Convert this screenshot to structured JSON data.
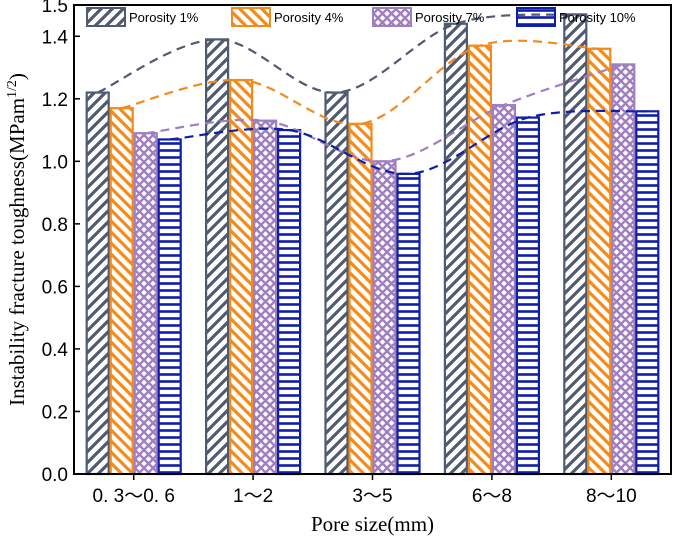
{
  "chart_data": {
    "type": "bar",
    "title": "",
    "xlabel": "Pore size(mm)",
    "ylabel": "Instability fracture toughness(MPam",
    "ylabel_superscript": "1/2",
    "ylabel_suffix": ")",
    "categories": [
      "0. 3～0. 6",
      "1～2",
      "3～5",
      "6～8",
      "8～10"
    ],
    "ylim": [
      0.0,
      1.5
    ],
    "yticks": [
      "0.0",
      "0.2",
      "0.4",
      "0.6",
      "0.8",
      "1.0",
      "1.2",
      "1.4",
      "1.5"
    ],
    "legend_position": "top",
    "series": [
      {
        "name": "Porosity 1%",
        "values": [
          1.22,
          1.39,
          1.22,
          1.44,
          1.47
        ],
        "color": "#505a70",
        "pattern": "diagonal-right"
      },
      {
        "name": "Porosity 4%",
        "values": [
          1.17,
          1.26,
          1.12,
          1.37,
          1.36
        ],
        "color": "#f28a1c",
        "pattern": "diagonal-left"
      },
      {
        "name": "Porosity 7%",
        "values": [
          1.09,
          1.13,
          1.0,
          1.18,
          1.31
        ],
        "color": "#a07fc0",
        "pattern": "crosshatch"
      },
      {
        "name": "Porosity 10%",
        "values": [
          1.07,
          1.1,
          0.96,
          1.14,
          1.16
        ],
        "color": "#0f1ea8",
        "pattern": "horizontal"
      }
    ],
    "trend_lines": true
  }
}
